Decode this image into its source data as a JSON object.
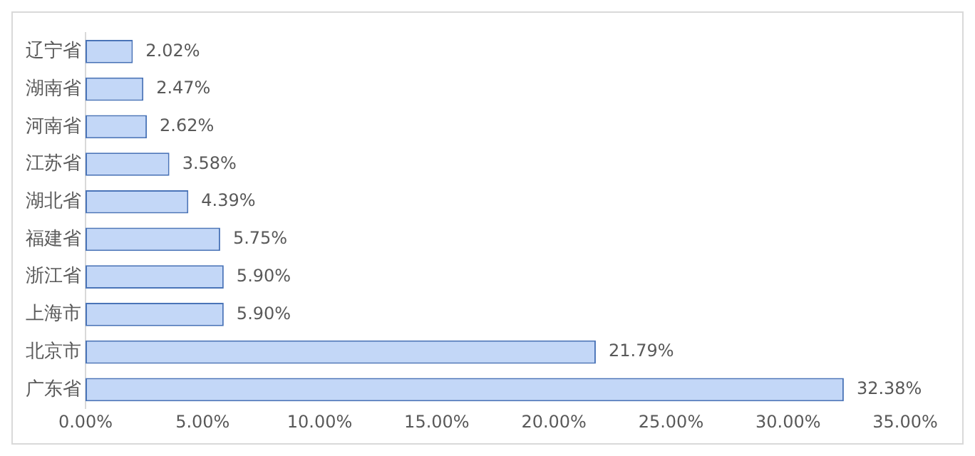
{
  "chart_data": {
    "type": "bar",
    "orientation": "horizontal",
    "categories": [
      "辽宁省",
      "湖南省",
      "河南省",
      "江苏省",
      "湖北省",
      "福建省",
      "浙江省",
      "上海市",
      "北京市",
      "广东省"
    ],
    "values": [
      2.02,
      2.47,
      2.62,
      3.58,
      4.39,
      5.75,
      5.9,
      5.9,
      21.79,
      32.38
    ],
    "value_labels": [
      "2.02%",
      "2.47%",
      "2.62%",
      "3.58%",
      "4.39%",
      "5.75%",
      "5.90%",
      "5.90%",
      "21.79%",
      "32.38%"
    ],
    "color": "#c3d7f7",
    "xlim": [
      0,
      35
    ],
    "xticks": [
      {
        "value": 0,
        "label": "0.00%"
      },
      {
        "value": 5,
        "label": "5.00%"
      },
      {
        "value": 10,
        "label": "10.00%"
      },
      {
        "value": 15,
        "label": "15.00%"
      },
      {
        "value": 20,
        "label": "20.00%"
      },
      {
        "value": 25,
        "label": "25.00%"
      },
      {
        "value": 30,
        "label": "30.00%"
      },
      {
        "value": 35,
        "label": "35.00%"
      }
    ],
    "grid": false,
    "legend": false
  }
}
